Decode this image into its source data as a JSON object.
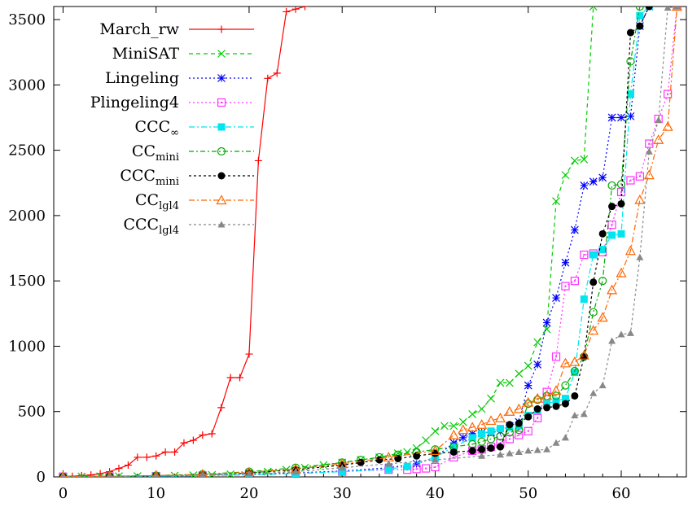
{
  "chart_data": {
    "type": "line",
    "title": "",
    "xlabel": "",
    "ylabel": "",
    "xlim": [
      -1,
      67
    ],
    "ylim": [
      0,
      3600
    ],
    "x_ticks": [
      0,
      10,
      20,
      30,
      40,
      50,
      60
    ],
    "y_ticks": [
      0,
      500,
      1000,
      1500,
      2000,
      2500,
      3000,
      3500
    ],
    "grid": false,
    "legend_position": "top-left",
    "series": [
      {
        "name": "March_rw",
        "label_main": "March",
        "label_rest": "rw",
        "label_style": "underscore",
        "color": "#ff0000",
        "dash": "",
        "marker": "plus",
        "x": [
          0,
          1,
          2,
          3,
          4,
          5,
          6,
          7,
          8,
          9,
          10,
          11,
          12,
          13,
          14,
          15,
          16,
          17,
          18,
          19,
          20,
          21,
          22,
          23,
          24,
          25,
          26
        ],
        "values": [
          3,
          5,
          10,
          15,
          25,
          40,
          65,
          90,
          150,
          150,
          160,
          190,
          190,
          260,
          280,
          320,
          330,
          530,
          760,
          760,
          940,
          2420,
          3050,
          3090,
          3560,
          3580,
          3600
        ]
      },
      {
        "name": "MiniSAT",
        "label_main": "MiniSAT",
        "color": "#00cc00",
        "dash": "5,4",
        "marker": "cross",
        "x": [
          0,
          2,
          4,
          6,
          8,
          10,
          12,
          14,
          16,
          18,
          20,
          22,
          24,
          26,
          28,
          30,
          32,
          34,
          36,
          37,
          38,
          39,
          40,
          41,
          42,
          43,
          44,
          45,
          46,
          47,
          48,
          49,
          50,
          51,
          52,
          53,
          54,
          55,
          56,
          57
        ],
        "values": [
          2,
          3,
          4,
          5,
          6,
          8,
          10,
          12,
          15,
          20,
          30,
          40,
          55,
          70,
          90,
          110,
          130,
          150,
          180,
          190,
          220,
          280,
          350,
          390,
          390,
          420,
          480,
          520,
          600,
          720,
          720,
          790,
          850,
          1030,
          1130,
          2110,
          2310,
          2420,
          2430,
          3600
        ]
      },
      {
        "name": "Lingeling",
        "label_main": "Lingeling",
        "color": "#0000ff",
        "dash": "2,3",
        "marker": "star",
        "x": [
          0,
          5,
          10,
          15,
          20,
          25,
          30,
          35,
          38,
          40,
          42,
          43,
          44,
          45,
          46,
          47,
          48,
          49,
          50,
          51,
          52,
          53,
          54,
          55,
          56,
          57,
          58,
          59,
          60,
          61,
          62,
          63
        ],
        "values": [
          2,
          3,
          5,
          10,
          20,
          30,
          45,
          70,
          100,
          150,
          260,
          300,
          330,
          340,
          340,
          350,
          390,
          420,
          700,
          860,
          1180,
          1370,
          1640,
          1890,
          2230,
          2260,
          2290,
          2750,
          2750,
          2760,
          3450,
          3600
        ]
      },
      {
        "name": "Plingeling4",
        "label_main": "Plingeling4",
        "color": "#ff33ff",
        "dash": "2,3",
        "marker": "square-dot",
        "x": [
          0,
          5,
          10,
          15,
          20,
          25,
          30,
          35,
          37,
          38,
          39,
          40,
          42,
          44,
          45,
          46,
          47,
          48,
          49,
          50,
          51,
          52,
          53,
          54,
          55,
          56,
          57,
          58,
          59,
          60,
          61,
          62,
          63,
          64,
          65,
          66
        ],
        "values": [
          2,
          3,
          5,
          10,
          15,
          25,
          40,
          55,
          55,
          60,
          65,
          75,
          150,
          200,
          210,
          230,
          260,
          290,
          320,
          350,
          450,
          650,
          920,
          1460,
          1500,
          1700,
          1710,
          1720,
          1930,
          2180,
          2270,
          2300,
          2550,
          2740,
          2930,
          3600
        ]
      },
      {
        "name": "CCC_∞",
        "label_main": "CCC",
        "label_sub": "∞",
        "color": "#00e5ee",
        "dash": "7,3,2,3",
        "marker": "square",
        "x": [
          0,
          5,
          10,
          15,
          20,
          25,
          30,
          35,
          37,
          40,
          42,
          44,
          45,
          46,
          47,
          48,
          49,
          50,
          51,
          52,
          53,
          54,
          55,
          56,
          57,
          58,
          59,
          60,
          61,
          62,
          63
        ],
        "values": [
          2,
          3,
          5,
          10,
          15,
          25,
          40,
          60,
          80,
          150,
          230,
          300,
          330,
          350,
          370,
          380,
          390,
          470,
          510,
          560,
          580,
          600,
          800,
          1360,
          1700,
          1740,
          1850,
          1860,
          2930,
          3530,
          3600
        ]
      },
      {
        "name": "CC_mini",
        "label_main": "CC",
        "label_sub": "mini",
        "color": "#00aa00",
        "dash": "6,3,2,3",
        "marker": "circle",
        "x": [
          0,
          5,
          10,
          15,
          20,
          25,
          30,
          32,
          34,
          36,
          38,
          40,
          42,
          44,
          45,
          46,
          47,
          48,
          49,
          50,
          51,
          52,
          53,
          54,
          55,
          56,
          57,
          58,
          59,
          60,
          61,
          62
        ],
        "values": [
          2,
          5,
          10,
          20,
          40,
          70,
          110,
          130,
          150,
          170,
          190,
          210,
          230,
          250,
          270,
          290,
          310,
          340,
          360,
          560,
          590,
          620,
          620,
          700,
          810,
          920,
          1260,
          1500,
          2230,
          2240,
          3180,
          3600
        ]
      },
      {
        "name": "CCC_mini",
        "label_main": "CCC",
        "label_sub": "mini",
        "color": "#000000",
        "dash": "3,3",
        "marker": "filled-circle",
        "x": [
          0,
          5,
          10,
          15,
          20,
          25,
          30,
          32,
          34,
          36,
          38,
          40,
          42,
          44,
          45,
          46,
          47,
          48,
          49,
          50,
          51,
          52,
          53,
          54,
          55,
          56,
          57,
          58,
          59,
          60,
          61,
          62,
          63
        ],
        "values": [
          2,
          4,
          8,
          15,
          30,
          55,
          90,
          110,
          130,
          140,
          160,
          180,
          190,
          200,
          210,
          220,
          230,
          400,
          410,
          460,
          520,
          530,
          540,
          560,
          620,
          920,
          1490,
          1860,
          2070,
          2090,
          3400,
          3450,
          3600
        ]
      },
      {
        "name": "CC_lgl4",
        "label_main": "CC",
        "label_sub": "lgl4",
        "color": "#ff6600",
        "dash": "7,3,2,3",
        "marker": "triangle",
        "x": [
          0,
          5,
          10,
          15,
          20,
          25,
          30,
          35,
          40,
          42,
          43,
          44,
          45,
          46,
          47,
          48,
          49,
          50,
          51,
          52,
          53,
          54,
          55,
          56,
          57,
          58,
          59,
          60,
          61,
          62,
          63,
          64,
          65,
          66
        ],
        "values": [
          2,
          5,
          10,
          20,
          35,
          60,
          100,
          150,
          200,
          320,
          360,
          380,
          400,
          430,
          450,
          500,
          520,
          570,
          600,
          620,
          660,
          870,
          880,
          930,
          1120,
          1220,
          1430,
          1560,
          1730,
          2120,
          2310,
          2580,
          2680,
          3600
        ]
      },
      {
        "name": "CCC_lgl4",
        "label_main": "CCC",
        "label_sub": "lgl4",
        "color": "#888888",
        "dash": "3,3",
        "marker": "filled-triangle",
        "x": [
          0,
          5,
          10,
          15,
          20,
          25,
          30,
          35,
          40,
          45,
          47,
          48,
          49,
          50,
          51,
          52,
          53,
          54,
          55,
          56,
          57,
          58,
          59,
          60,
          61,
          62,
          63,
          64,
          65,
          66
        ],
        "values": [
          2,
          4,
          8,
          15,
          25,
          40,
          70,
          100,
          130,
          160,
          170,
          180,
          190,
          200,
          205,
          210,
          260,
          300,
          470,
          480,
          640,
          700,
          1040,
          1090,
          1100,
          1680,
          2490,
          2730,
          3590,
          3600
        ]
      }
    ]
  }
}
